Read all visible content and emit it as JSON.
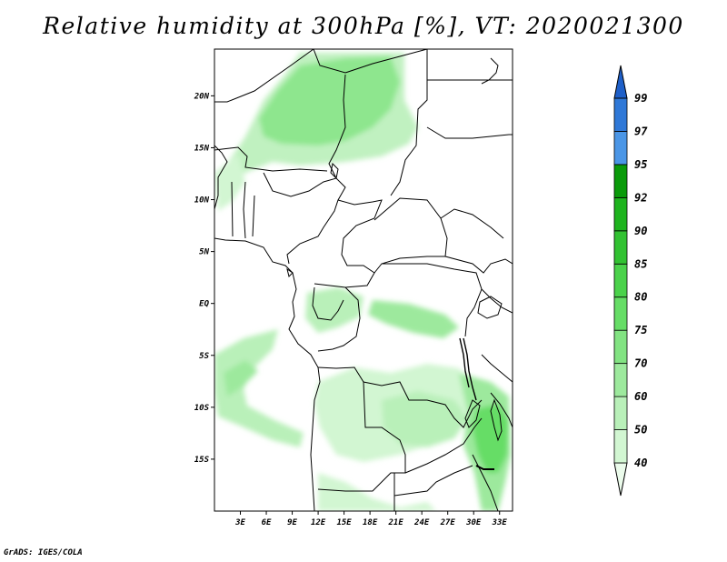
{
  "title": "Relative humidity at 300hPa [%], VT: 2020021300",
  "credit": "GrADS: IGES/COLA",
  "map": {
    "lon_range": [
      0,
      34.5
    ],
    "lat_range": [
      -20,
      24.5
    ],
    "lat_ticks": [
      {
        "value": 20,
        "label": "20N"
      },
      {
        "value": 15,
        "label": "15N"
      },
      {
        "value": 10,
        "label": "10N"
      },
      {
        "value": 5,
        "label": "5N"
      },
      {
        "value": 0,
        "label": "EQ"
      },
      {
        "value": -5,
        "label": "5S"
      },
      {
        "value": -10,
        "label": "10S"
      },
      {
        "value": -15,
        "label": "15S"
      }
    ],
    "lon_ticks": [
      {
        "value": 3,
        "label": "3E"
      },
      {
        "value": 6,
        "label": "6E"
      },
      {
        "value": 9,
        "label": "9E"
      },
      {
        "value": 12,
        "label": "12E"
      },
      {
        "value": 15,
        "label": "15E"
      },
      {
        "value": 18,
        "label": "18E"
      },
      {
        "value": 21,
        "label": "21E"
      },
      {
        "value": 24,
        "label": "24E"
      },
      {
        "value": 27,
        "label": "27E"
      },
      {
        "value": 30,
        "label": "30E"
      },
      {
        "value": 33,
        "label": "33E"
      }
    ]
  },
  "colorbar": {
    "levels": [
      "40",
      "50",
      "60",
      "70",
      "75",
      "80",
      "85",
      "90",
      "92",
      "95",
      "97",
      "99"
    ],
    "colors": [
      "#ebfbeb",
      "#d2f6d2",
      "#b9f0b9",
      "#9de99d",
      "#82e382",
      "#66dd66",
      "#4bd24b",
      "#32c232",
      "#1eb41e",
      "#0a9b0a",
      "#4b96e6",
      "#2f78d7",
      "#1e5fc8"
    ]
  }
}
